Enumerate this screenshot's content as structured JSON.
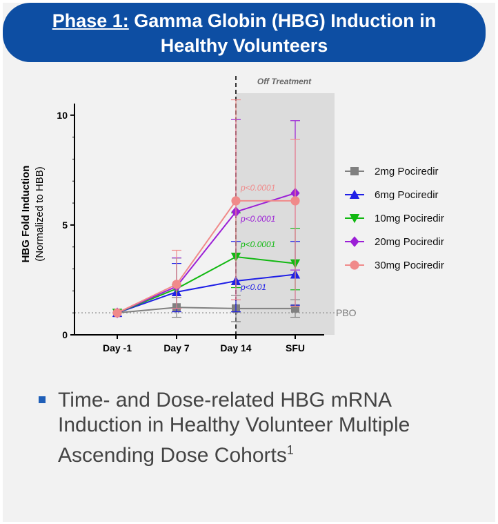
{
  "header": {
    "title_prefix": "Phase 1:",
    "title_rest": " Gamma Globin (HBG) Induction in",
    "title_line2": "Healthy Volunteers"
  },
  "bullet": {
    "text": "Time- and Dose-related HBG mRNA Induction in Healthy Volunteer Multiple Ascending Dose Cohorts",
    "footnote": "1"
  },
  "chart_data": {
    "type": "line",
    "categories": [
      "Day -1",
      "Day 7",
      "Day 14",
      "SFU"
    ],
    "ylabel": "HBG Fold Induction",
    "ylabel_sub": "(Normalized to HBB)",
    "ylim": [
      0,
      11
    ],
    "yticks": [
      0,
      5,
      10
    ],
    "legend_position": "right",
    "shaded_region_label": "Off Treatment",
    "reference_line": {
      "value": 1,
      "label": "PBO"
    },
    "series": [
      {
        "name": "2mg Pociredir",
        "color": "#808080",
        "marker": "square",
        "values": [
          1.0,
          1.25,
          1.2,
          1.2
        ],
        "err_low": [
          0,
          0.45,
          0.6,
          0.4
        ],
        "err_high": [
          0,
          0.45,
          0.6,
          0.4
        ]
      },
      {
        "name": "6mg Pociredir",
        "color": "#1f1fe6",
        "marker": "triangle-up",
        "values": [
          1.0,
          1.95,
          2.45,
          2.75
        ],
        "err_low": [
          0,
          0.9,
          1.4,
          1.4
        ],
        "err_high": [
          0,
          1.3,
          1.8,
          1.5
        ]
      },
      {
        "name": "10mg Pociredir",
        "color": "#11b811",
        "marker": "triangle-down",
        "values": [
          1.0,
          2.1,
          3.55,
          3.25
        ],
        "err_low": [
          0,
          0.9,
          1.4,
          1.2
        ],
        "err_high": [
          0,
          1.4,
          2.0,
          1.6
        ]
      },
      {
        "name": "20mg Pociredir",
        "color": "#9b1fd6",
        "marker": "diamond",
        "values": [
          1.0,
          2.2,
          5.6,
          6.45
        ],
        "err_low": [
          0,
          1.0,
          4.0,
          3.5
        ],
        "err_high": [
          0,
          1.3,
          4.2,
          3.3
        ]
      },
      {
        "name": "30mg Pociredir",
        "color": "#f08a8a",
        "marker": "circle",
        "values": [
          1.0,
          2.3,
          6.1,
          6.1
        ],
        "err_low": [
          0,
          1.1,
          4.5,
          4.8
        ],
        "err_high": [
          0,
          1.55,
          4.6,
          2.8
        ]
      }
    ],
    "annotations": [
      {
        "text": "p<0.0001",
        "color": "#f08a8a"
      },
      {
        "text": "p<0.0001",
        "color": "#9b1fd6"
      },
      {
        "text": "p<0.0001",
        "color": "#11b811"
      },
      {
        "text": "p<0.01",
        "color": "#1f1fe6"
      }
    ]
  }
}
